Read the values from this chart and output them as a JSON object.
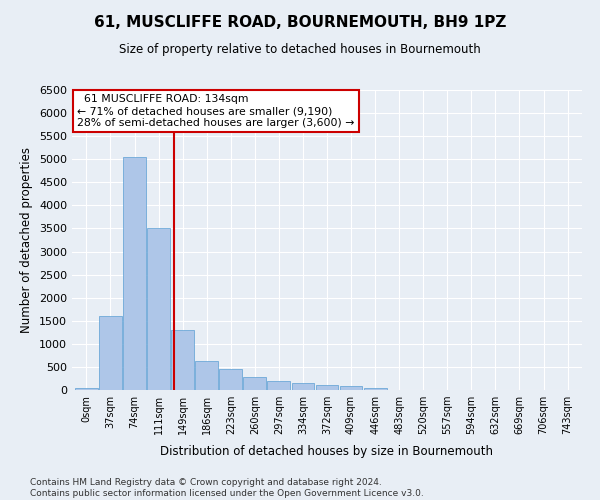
{
  "title": "61, MUSCLIFFE ROAD, BOURNEMOUTH, BH9 1PZ",
  "subtitle": "Size of property relative to detached houses in Bournemouth",
  "xlabel": "Distribution of detached houses by size in Bournemouth",
  "ylabel": "Number of detached properties",
  "footer_line1": "Contains HM Land Registry data © Crown copyright and database right 2024.",
  "footer_line2": "Contains public sector information licensed under the Open Government Licence v3.0.",
  "bar_labels": [
    "0sqm",
    "37sqm",
    "74sqm",
    "111sqm",
    "149sqm",
    "186sqm",
    "223sqm",
    "260sqm",
    "297sqm",
    "334sqm",
    "372sqm",
    "409sqm",
    "446sqm",
    "483sqm",
    "520sqm",
    "557sqm",
    "594sqm",
    "632sqm",
    "669sqm",
    "706sqm",
    "743sqm"
  ],
  "bar_values": [
    50,
    1600,
    5050,
    3500,
    1300,
    620,
    460,
    290,
    195,
    150,
    100,
    95,
    50,
    0,
    0,
    0,
    0,
    0,
    0,
    0,
    0
  ],
  "bar_color": "#aec6e8",
  "bar_edgecolor": "#5a9fd4",
  "ylim": [
    0,
    6500
  ],
  "yticks": [
    0,
    500,
    1000,
    1500,
    2000,
    2500,
    3000,
    3500,
    4000,
    4500,
    5000,
    5500,
    6000,
    6500
  ],
  "red_line_x": 3.62,
  "annotation_text": "  61 MUSCLIFFE ROAD: 134sqm\n← 71% of detached houses are smaller (9,190)\n28% of semi-detached houses are larger (3,600) →",
  "annotation_box_color": "#ffffff",
  "annotation_box_edgecolor": "#cc0000",
  "red_line_color": "#cc0000",
  "bg_color": "#e8eef5",
  "grid_color": "#ffffff",
  "title_fontsize": 11,
  "subtitle_fontsize": 9
}
